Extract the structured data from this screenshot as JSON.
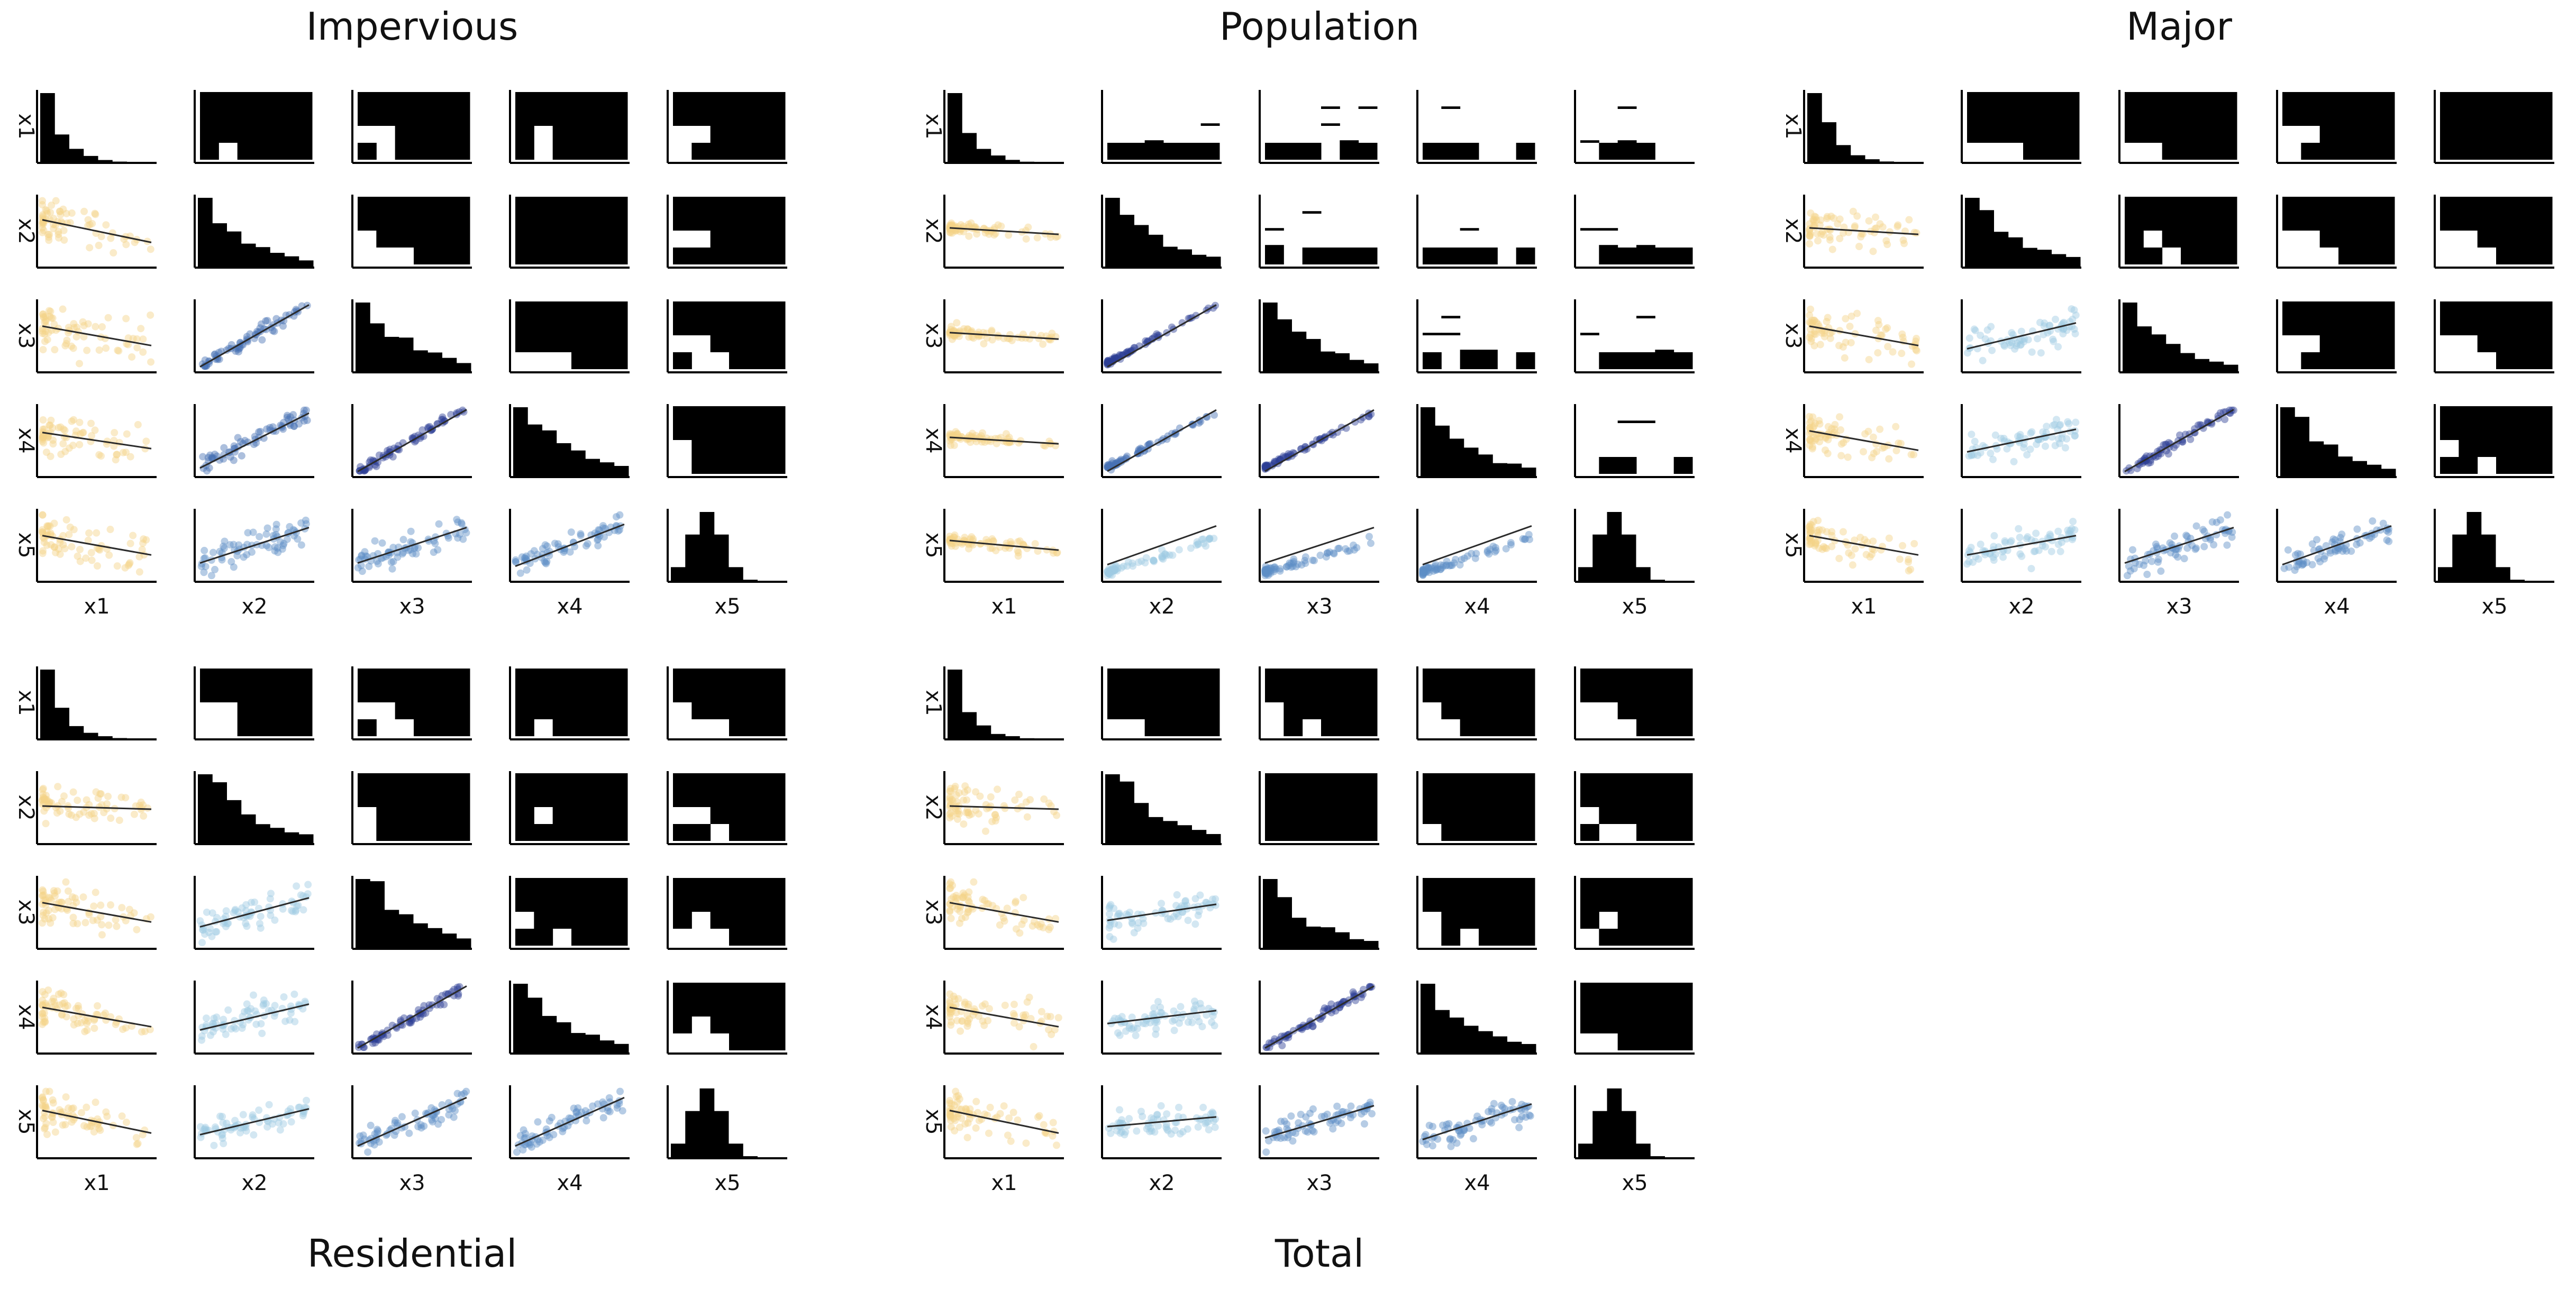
{
  "figure": {
    "variables": [
      "x1",
      "x2",
      "x3",
      "x4",
      "x5"
    ],
    "colors": {
      "x1": "#f3d388",
      "x2": "#9ec9e2",
      "x3": "#5d8ec6",
      "x4": "#4670b3",
      "x5": "#2d3f95",
      "hist": "#000000",
      "fit": "#2b2b2b"
    }
  },
  "chart_data": [
    {
      "type": "scatter",
      "title": "Impervious",
      "variables": [
        "x1",
        "x2",
        "x3",
        "x4",
        "x5"
      ],
      "diag": "histogram",
      "upper": "2d-histogram",
      "lower": "scatter-with-fit",
      "lower_panels": [
        {
          "x": "x1",
          "y": "x2",
          "slope": -0.35,
          "spread": 0.3,
          "color": "x1",
          "skew": 1
        },
        {
          "x": "x1",
          "y": "x3",
          "slope": -0.3,
          "spread": 0.3,
          "color": "x1",
          "skew": 1
        },
        {
          "x": "x1",
          "y": "x4",
          "slope": -0.25,
          "spread": 0.28,
          "color": "x1",
          "skew": 1
        },
        {
          "x": "x1",
          "y": "x5",
          "slope": -0.3,
          "spread": 0.28,
          "color": "x1",
          "skew": 1
        },
        {
          "x": "x2",
          "y": "x3",
          "slope": 1.0,
          "spread": 0.1,
          "color": "x4"
        },
        {
          "x": "x2",
          "y": "x4",
          "slope": 0.85,
          "spread": 0.14,
          "color": "x4"
        },
        {
          "x": "x2",
          "y": "x5",
          "slope": 0.55,
          "spread": 0.2,
          "color": "x3"
        },
        {
          "x": "x3",
          "y": "x4",
          "slope": 1.0,
          "spread": 0.07,
          "color": "x5"
        },
        {
          "x": "x3",
          "y": "x5",
          "slope": 0.55,
          "spread": 0.2,
          "color": "x3"
        },
        {
          "x": "x4",
          "y": "x5",
          "slope": 0.65,
          "spread": 0.18,
          "color": "x3"
        }
      ]
    },
    {
      "type": "scatter",
      "title": "Population",
      "variables": [
        "x1",
        "x2",
        "x3",
        "x4",
        "x5"
      ],
      "diag": "histogram",
      "upper": "2d-histogram",
      "lower": "scatter-with-fit",
      "lower_panels": [
        {
          "x": "x1",
          "y": "x2",
          "slope": -0.1,
          "spread": 0.08,
          "color": "x1",
          "skew": 1
        },
        {
          "x": "x1",
          "y": "x3",
          "slope": -0.1,
          "spread": 0.08,
          "color": "x1",
          "skew": 1
        },
        {
          "x": "x1",
          "y": "x4",
          "slope": -0.1,
          "spread": 0.08,
          "color": "x1",
          "skew": 1
        },
        {
          "x": "x1",
          "y": "x5",
          "slope": -0.15,
          "spread": 0.1,
          "color": "x1",
          "skew": 1
        },
        {
          "x": "x2",
          "y": "x3",
          "slope": 1.0,
          "spread": 0.05,
          "color": "x5",
          "skew": 1
        },
        {
          "x": "x2",
          "y": "x4",
          "slope": 0.95,
          "spread": 0.06,
          "color": "x4",
          "skew": 1
        },
        {
          "x": "x2",
          "y": "x5",
          "slope": 0.6,
          "spread": 0.1,
          "color": "x2",
          "skew": 1
        },
        {
          "x": "x3",
          "y": "x4",
          "slope": 0.95,
          "spread": 0.05,
          "color": "x5",
          "skew": 1
        },
        {
          "x": "x3",
          "y": "x5",
          "slope": 0.55,
          "spread": 0.1,
          "color": "x3",
          "skew": 1
        },
        {
          "x": "x4",
          "y": "x5",
          "slope": 0.6,
          "spread": 0.1,
          "color": "x3",
          "skew": 1
        }
      ]
    },
    {
      "type": "scatter",
      "title": "Major",
      "variables": [
        "x1",
        "x2",
        "x3",
        "x4",
        "x5"
      ],
      "diag": "histogram",
      "upper": "2d-histogram",
      "lower": "scatter-with-fit",
      "lower_panels": [
        {
          "x": "x1",
          "y": "x2",
          "slope": -0.1,
          "spread": 0.25,
          "color": "x1",
          "skew": 1
        },
        {
          "x": "x1",
          "y": "x3",
          "slope": -0.3,
          "spread": 0.28,
          "color": "x1",
          "skew": 1
        },
        {
          "x": "x1",
          "y": "x4",
          "slope": -0.3,
          "spread": 0.28,
          "color": "x1",
          "skew": 1
        },
        {
          "x": "x1",
          "y": "x5",
          "slope": -0.3,
          "spread": 0.26,
          "color": "x1",
          "skew": 1
        },
        {
          "x": "x2",
          "y": "x3",
          "slope": 0.4,
          "spread": 0.22,
          "color": "x2"
        },
        {
          "x": "x2",
          "y": "x4",
          "slope": 0.35,
          "spread": 0.22,
          "color": "x2"
        },
        {
          "x": "x2",
          "y": "x5",
          "slope": 0.3,
          "spread": 0.22,
          "color": "x2"
        },
        {
          "x": "x3",
          "y": "x4",
          "slope": 1.0,
          "spread": 0.07,
          "color": "x5"
        },
        {
          "x": "x3",
          "y": "x5",
          "slope": 0.55,
          "spread": 0.2,
          "color": "x3"
        },
        {
          "x": "x4",
          "y": "x5",
          "slope": 0.6,
          "spread": 0.18,
          "color": "x3"
        }
      ]
    },
    {
      "type": "scatter",
      "title": "Residential",
      "variables": [
        "x1",
        "x2",
        "x3",
        "x4",
        "x5"
      ],
      "diag": "histogram",
      "upper": "2d-histogram",
      "lower": "scatter-with-fit",
      "lower_panels": [
        {
          "x": "x1",
          "y": "x2",
          "slope": -0.05,
          "spread": 0.25,
          "color": "x1",
          "skew": 1
        },
        {
          "x": "x1",
          "y": "x3",
          "slope": -0.3,
          "spread": 0.26,
          "color": "x1",
          "skew": 1
        },
        {
          "x": "x1",
          "y": "x4",
          "slope": -0.3,
          "spread": 0.26,
          "color": "x1",
          "skew": 1
        },
        {
          "x": "x1",
          "y": "x5",
          "slope": -0.35,
          "spread": 0.24,
          "color": "x1",
          "skew": 1
        },
        {
          "x": "x2",
          "y": "x3",
          "slope": 0.45,
          "spread": 0.2,
          "color": "x2"
        },
        {
          "x": "x2",
          "y": "x4",
          "slope": 0.4,
          "spread": 0.2,
          "color": "x2"
        },
        {
          "x": "x2",
          "y": "x5",
          "slope": 0.4,
          "spread": 0.2,
          "color": "x2"
        },
        {
          "x": "x3",
          "y": "x4",
          "slope": 1.0,
          "spread": 0.08,
          "color": "x5"
        },
        {
          "x": "x3",
          "y": "x5",
          "slope": 0.75,
          "spread": 0.18,
          "color": "x3"
        },
        {
          "x": "x4",
          "y": "x5",
          "slope": 0.75,
          "spread": 0.16,
          "color": "x3"
        }
      ]
    },
    {
      "type": "scatter",
      "title": "Total",
      "variables": [
        "x1",
        "x2",
        "x3",
        "x4",
        "x5"
      ],
      "diag": "histogram",
      "upper": "2d-histogram",
      "lower": "scatter-with-fit",
      "lower_panels": [
        {
          "x": "x1",
          "y": "x2",
          "slope": -0.05,
          "spread": 0.25,
          "color": "x1",
          "skew": 1
        },
        {
          "x": "x1",
          "y": "x3",
          "slope": -0.3,
          "spread": 0.26,
          "color": "x1",
          "skew": 1
        },
        {
          "x": "x1",
          "y": "x4",
          "slope": -0.3,
          "spread": 0.26,
          "color": "x1",
          "skew": 1
        },
        {
          "x": "x1",
          "y": "x5",
          "slope": -0.35,
          "spread": 0.24,
          "color": "x1",
          "skew": 1
        },
        {
          "x": "x2",
          "y": "x3",
          "slope": 0.25,
          "spread": 0.22,
          "color": "x2"
        },
        {
          "x": "x2",
          "y": "x4",
          "slope": 0.2,
          "spread": 0.22,
          "color": "x2"
        },
        {
          "x": "x2",
          "y": "x5",
          "slope": 0.15,
          "spread": 0.22,
          "color": "x2"
        },
        {
          "x": "x3",
          "y": "x4",
          "slope": 1.0,
          "spread": 0.08,
          "color": "x5"
        },
        {
          "x": "x3",
          "y": "x5",
          "slope": 0.5,
          "spread": 0.2,
          "color": "x3"
        },
        {
          "x": "x4",
          "y": "x5",
          "slope": 0.55,
          "spread": 0.18,
          "color": "x3"
        }
      ]
    }
  ]
}
